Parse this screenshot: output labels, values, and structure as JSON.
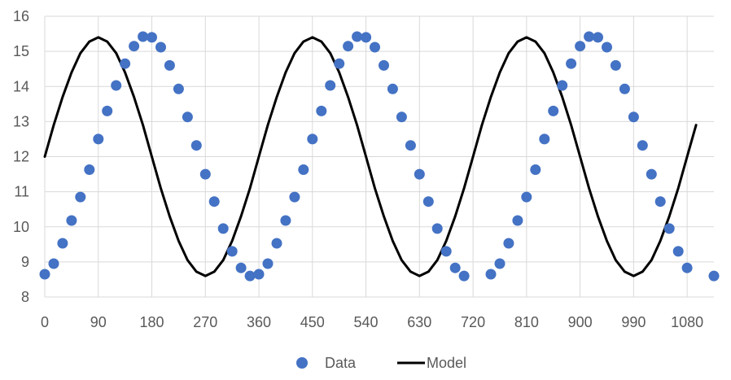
{
  "chart_data": {
    "type": "scatter",
    "xlim": [
      0,
      1125
    ],
    "ylim": [
      8,
      16
    ],
    "x_ticks": [
      0,
      90,
      180,
      270,
      360,
      450,
      540,
      630,
      720,
      810,
      900,
      990,
      1080
    ],
    "y_ticks": [
      8,
      9,
      10,
      11,
      12,
      13,
      14,
      15,
      16
    ],
    "x_tick_labels": [
      "0",
      "90",
      "180",
      "270",
      "360",
      "450",
      "540",
      "630",
      "720",
      "810",
      "900",
      "990",
      "1080"
    ],
    "y_tick_labels": [
      "8",
      "9",
      "10",
      "11",
      "12",
      "13",
      "14",
      "15",
      "16"
    ],
    "grid": "major gridlines on both axes",
    "legend_position": "bottom",
    "series": [
      {
        "name": "Data",
        "kind": "markers",
        "color": "#4472C4",
        "points": [
          [
            0,
            8.65
          ],
          [
            15,
            8.95
          ],
          [
            30,
            9.53
          ],
          [
            45,
            10.18
          ],
          [
            60,
            10.85
          ],
          [
            75,
            11.63
          ],
          [
            90,
            12.5
          ],
          [
            105,
            13.3
          ],
          [
            120,
            14.03
          ],
          [
            135,
            14.65
          ],
          [
            150,
            15.15
          ],
          [
            165,
            15.42
          ],
          [
            180,
            15.4
          ],
          [
            195,
            15.12
          ],
          [
            210,
            14.6
          ],
          [
            225,
            13.93
          ],
          [
            240,
            13.13
          ],
          [
            255,
            12.32
          ],
          [
            270,
            11.5
          ],
          [
            285,
            10.72
          ],
          [
            300,
            9.95
          ],
          [
            315,
            9.3
          ],
          [
            330,
            8.83
          ],
          [
            345,
            8.6
          ],
          [
            360,
            8.65
          ],
          [
            375,
            8.95
          ],
          [
            390,
            9.53
          ],
          [
            405,
            10.18
          ],
          [
            420,
            10.85
          ],
          [
            435,
            11.63
          ],
          [
            450,
            12.5
          ],
          [
            465,
            13.3
          ],
          [
            480,
            14.03
          ],
          [
            495,
            14.65
          ],
          [
            510,
            15.15
          ],
          [
            525,
            15.42
          ],
          [
            540,
            15.4
          ],
          [
            555,
            15.12
          ],
          [
            570,
            14.6
          ],
          [
            585,
            13.93
          ],
          [
            600,
            13.13
          ],
          [
            615,
            12.32
          ],
          [
            630,
            11.5
          ],
          [
            645,
            10.72
          ],
          [
            660,
            9.95
          ],
          [
            675,
            9.3
          ],
          [
            690,
            8.83
          ],
          [
            705,
            8.6
          ],
          [
            750,
            8.65
          ],
          [
            765,
            8.95
          ],
          [
            780,
            9.53
          ],
          [
            795,
            10.18
          ],
          [
            810,
            10.85
          ],
          [
            825,
            11.63
          ],
          [
            840,
            12.5
          ],
          [
            855,
            13.3
          ],
          [
            870,
            14.03
          ],
          [
            885,
            14.65
          ],
          [
            900,
            15.15
          ],
          [
            915,
            15.42
          ],
          [
            930,
            15.4
          ],
          [
            945,
            15.12
          ],
          [
            960,
            14.6
          ],
          [
            975,
            13.93
          ],
          [
            990,
            13.13
          ],
          [
            1005,
            12.32
          ],
          [
            1020,
            11.5
          ],
          [
            1035,
            10.72
          ],
          [
            1050,
            9.95
          ],
          [
            1065,
            9.3
          ],
          [
            1080,
            8.83
          ],
          [
            1125,
            8.6
          ]
        ]
      },
      {
        "name": "Model",
        "kind": "line",
        "color": "#000000",
        "points": [
          [
            0,
            12.0
          ],
          [
            15,
            12.9
          ],
          [
            30,
            13.7
          ],
          [
            45,
            14.4
          ],
          [
            60,
            14.95
          ],
          [
            75,
            15.28
          ],
          [
            90,
            15.4
          ],
          [
            105,
            15.28
          ],
          [
            120,
            14.95
          ],
          [
            135,
            14.4
          ],
          [
            150,
            13.7
          ],
          [
            165,
            12.9
          ],
          [
            180,
            12.0
          ],
          [
            195,
            11.1
          ],
          [
            210,
            10.3
          ],
          [
            225,
            9.6
          ],
          [
            240,
            9.05
          ],
          [
            255,
            8.72
          ],
          [
            270,
            8.6
          ],
          [
            285,
            8.72
          ],
          [
            300,
            9.05
          ],
          [
            315,
            9.6
          ],
          [
            330,
            10.3
          ],
          [
            345,
            11.1
          ],
          [
            360,
            12.0
          ],
          [
            375,
            12.9
          ],
          [
            390,
            13.7
          ],
          [
            405,
            14.4
          ],
          [
            420,
            14.95
          ],
          [
            435,
            15.28
          ],
          [
            450,
            15.4
          ],
          [
            465,
            15.28
          ],
          [
            480,
            14.95
          ],
          [
            495,
            14.4
          ],
          [
            510,
            13.7
          ],
          [
            525,
            12.9
          ],
          [
            540,
            12.0
          ],
          [
            555,
            11.1
          ],
          [
            570,
            10.3
          ],
          [
            585,
            9.6
          ],
          [
            600,
            9.05
          ],
          [
            615,
            8.72
          ],
          [
            630,
            8.6
          ],
          [
            645,
            8.72
          ],
          [
            660,
            9.05
          ],
          [
            675,
            9.6
          ],
          [
            690,
            10.3
          ],
          [
            705,
            11.1
          ],
          [
            720,
            12.0
          ],
          [
            735,
            12.9
          ],
          [
            750,
            13.7
          ],
          [
            765,
            14.4
          ],
          [
            780,
            14.95
          ],
          [
            795,
            15.28
          ],
          [
            810,
            15.4
          ],
          [
            825,
            15.28
          ],
          [
            840,
            14.95
          ],
          [
            855,
            14.4
          ],
          [
            870,
            13.7
          ],
          [
            885,
            12.9
          ],
          [
            900,
            12.0
          ],
          [
            915,
            11.1
          ],
          [
            930,
            10.3
          ],
          [
            945,
            9.6
          ],
          [
            960,
            9.05
          ],
          [
            975,
            8.72
          ],
          [
            990,
            8.6
          ],
          [
            1005,
            8.72
          ],
          [
            1020,
            9.05
          ],
          [
            1035,
            9.6
          ],
          [
            1050,
            10.3
          ],
          [
            1065,
            11.1
          ],
          [
            1080,
            12.0
          ],
          [
            1095,
            12.9
          ]
        ]
      }
    ],
    "legend": [
      {
        "label": "Data",
        "marker": "circle",
        "color": "#4472C4"
      },
      {
        "label": "Model",
        "marker": "line",
        "color": "#000000"
      }
    ],
    "colors": {
      "grid": "#d9d9d9",
      "axis_text": "#595959",
      "background": "#ffffff"
    }
  }
}
